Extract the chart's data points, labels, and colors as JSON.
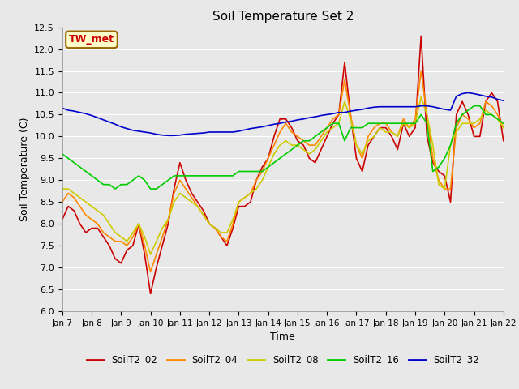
{
  "title": "Soil Temperature Set 2",
  "xlabel": "Time",
  "ylabel": "Soil Temperature (C)",
  "ylim": [
    6.0,
    12.5
  ],
  "yticks": [
    6.0,
    6.5,
    7.0,
    7.5,
    8.0,
    8.5,
    9.0,
    9.5,
    10.0,
    10.5,
    11.0,
    11.5,
    12.0,
    12.5
  ],
  "background_color": "#e8e8e8",
  "plot_bg_color": "#e8e8e8",
  "grid_color": "#ffffff",
  "annotation_text": "TW_met",
  "annotation_bg": "#ffffcc",
  "annotation_border": "#996600",
  "annotation_text_color": "#cc0000",
  "series": {
    "SoilT2_02": {
      "color": "#cc0000",
      "linewidth": 1.2
    },
    "SoilT2_04": {
      "color": "#ff8800",
      "linewidth": 1.2
    },
    "SoilT2_08": {
      "color": "#cccc00",
      "linewidth": 1.2
    },
    "SoilT2_16": {
      "color": "#00cc00",
      "linewidth": 1.2
    },
    "SoilT2_32": {
      "color": "#0000cc",
      "linewidth": 1.2
    }
  },
  "xtick_labels": [
    "Jan 7",
    "Jan 8",
    "Jan 9",
    "Jan 10",
    "Jan 11",
    "Jan 12",
    "Jan 13",
    "Jan 14",
    "Jan 15",
    "Jan 16",
    "Jan 17",
    "Jan 18",
    "Jan 19",
    "Jan 20",
    "Jan 21",
    "Jan 22"
  ],
  "SoilT2_02_x": [
    0,
    0.2,
    0.4,
    0.6,
    0.8,
    1.0,
    1.2,
    1.4,
    1.6,
    1.8,
    2.0,
    2.2,
    2.4,
    2.6,
    2.8,
    3.0,
    3.2,
    3.4,
    3.6,
    3.8,
    4.0,
    4.2,
    4.4,
    4.6,
    4.8,
    5.0,
    5.2,
    5.4,
    5.6,
    5.8,
    6.0,
    6.2,
    6.4,
    6.6,
    6.8,
    7.0,
    7.2,
    7.4,
    7.6,
    7.8,
    8.0,
    8.2,
    8.4,
    8.6,
    8.8,
    9.0,
    9.2,
    9.4,
    9.6,
    9.8,
    10.0,
    10.2,
    10.4,
    10.6,
    10.8,
    11.0,
    11.2,
    11.4,
    11.6,
    11.8,
    12.0,
    12.2,
    12.4,
    12.6,
    12.8,
    13.0,
    13.2,
    13.4,
    13.6,
    13.8,
    14.0,
    14.2,
    14.4,
    14.6,
    14.8,
    15.0
  ],
  "SoilT2_02_y": [
    8.1,
    8.4,
    8.3,
    8.0,
    7.8,
    7.9,
    7.9,
    7.7,
    7.5,
    7.2,
    7.1,
    7.4,
    7.5,
    8.0,
    7.3,
    6.4,
    7.0,
    7.5,
    8.0,
    8.8,
    9.4,
    9.0,
    8.7,
    8.5,
    8.3,
    8.0,
    7.9,
    7.7,
    7.5,
    7.9,
    8.4,
    8.4,
    8.5,
    9.0,
    9.3,
    9.5,
    10.0,
    10.4,
    10.4,
    10.2,
    9.9,
    9.8,
    9.5,
    9.4,
    9.7,
    10.0,
    10.3,
    10.5,
    11.7,
    10.5,
    9.5,
    9.2,
    9.8,
    10.0,
    10.2,
    10.2,
    10.0,
    9.7,
    10.3,
    10.0,
    10.2,
    12.3,
    10.0,
    9.4,
    9.2,
    9.1,
    8.5,
    10.5,
    10.8,
    10.5,
    10.0,
    10.0,
    10.8,
    11.0,
    10.8,
    9.9
  ],
  "SoilT2_04_x": [
    0,
    0.2,
    0.4,
    0.6,
    0.8,
    1.0,
    1.2,
    1.4,
    1.6,
    1.8,
    2.0,
    2.2,
    2.4,
    2.6,
    2.8,
    3.0,
    3.2,
    3.4,
    3.6,
    3.8,
    4.0,
    4.2,
    4.4,
    4.6,
    4.8,
    5.0,
    5.2,
    5.4,
    5.6,
    5.8,
    6.0,
    6.2,
    6.4,
    6.6,
    6.8,
    7.0,
    7.2,
    7.4,
    7.6,
    7.8,
    8.0,
    8.2,
    8.4,
    8.6,
    8.8,
    9.0,
    9.2,
    9.4,
    9.6,
    9.8,
    10.0,
    10.2,
    10.4,
    10.6,
    10.8,
    11.0,
    11.2,
    11.4,
    11.6,
    11.8,
    12.0,
    12.2,
    12.4,
    12.6,
    12.8,
    13.0,
    13.2,
    13.4,
    13.6,
    13.8,
    14.0,
    14.2,
    14.4,
    14.6,
    14.8,
    15.0
  ],
  "SoilT2_04_y": [
    8.5,
    8.7,
    8.6,
    8.4,
    8.2,
    8.1,
    8.0,
    7.8,
    7.7,
    7.6,
    7.6,
    7.5,
    7.7,
    8.0,
    7.5,
    6.9,
    7.3,
    7.7,
    8.1,
    8.7,
    9.0,
    8.8,
    8.6,
    8.4,
    8.2,
    8.0,
    7.9,
    7.7,
    7.6,
    8.0,
    8.5,
    8.6,
    8.7,
    9.0,
    9.2,
    9.5,
    9.8,
    10.1,
    10.3,
    10.1,
    10.0,
    9.9,
    9.8,
    9.8,
    10.0,
    10.2,
    10.4,
    10.5,
    11.3,
    10.5,
    9.8,
    9.5,
    10.0,
    10.2,
    10.3,
    10.3,
    10.1,
    10.0,
    10.4,
    10.2,
    10.4,
    11.5,
    10.5,
    9.5,
    9.0,
    8.8,
    8.8,
    10.2,
    10.5,
    10.4,
    10.2,
    10.3,
    10.8,
    10.7,
    10.5,
    10.2
  ],
  "SoilT2_08_x": [
    0,
    0.2,
    0.4,
    0.6,
    0.8,
    1.0,
    1.2,
    1.4,
    1.6,
    1.8,
    2.0,
    2.2,
    2.4,
    2.6,
    2.8,
    3.0,
    3.2,
    3.4,
    3.6,
    3.8,
    4.0,
    4.2,
    4.4,
    4.6,
    4.8,
    5.0,
    5.2,
    5.4,
    5.6,
    5.8,
    6.0,
    6.2,
    6.4,
    6.6,
    6.8,
    7.0,
    7.2,
    7.4,
    7.6,
    7.8,
    8.0,
    8.2,
    8.4,
    8.6,
    8.8,
    9.0,
    9.2,
    9.4,
    9.6,
    9.8,
    10.0,
    10.2,
    10.4,
    10.6,
    10.8,
    11.0,
    11.2,
    11.4,
    11.6,
    11.8,
    12.0,
    12.2,
    12.4,
    12.6,
    12.8,
    13.0,
    13.2,
    13.4,
    13.6,
    13.8,
    14.0,
    14.2,
    14.4,
    14.6,
    14.8,
    15.0
  ],
  "SoilT2_08_y": [
    8.8,
    8.8,
    8.7,
    8.6,
    8.5,
    8.4,
    8.3,
    8.2,
    8.0,
    7.8,
    7.7,
    7.6,
    7.8,
    8.0,
    7.7,
    7.3,
    7.6,
    7.9,
    8.1,
    8.5,
    8.7,
    8.6,
    8.5,
    8.4,
    8.2,
    8.0,
    7.9,
    7.8,
    7.8,
    8.1,
    8.5,
    8.6,
    8.7,
    8.8,
    9.0,
    9.3,
    9.6,
    9.8,
    9.9,
    9.8,
    9.8,
    9.7,
    9.6,
    9.7,
    9.9,
    10.1,
    10.2,
    10.3,
    10.8,
    10.4,
    9.8,
    9.6,
    9.9,
    10.0,
    10.2,
    10.1,
    10.1,
    10.0,
    10.3,
    10.2,
    10.3,
    10.9,
    10.5,
    9.8,
    8.9,
    8.8,
    9.8,
    10.1,
    10.3,
    10.3,
    10.3,
    10.4,
    10.6,
    10.5,
    10.4,
    10.2
  ],
  "SoilT2_16_x": [
    0,
    0.2,
    0.4,
    0.6,
    0.8,
    1.0,
    1.2,
    1.4,
    1.6,
    1.8,
    2.0,
    2.2,
    2.4,
    2.6,
    2.8,
    3.0,
    3.2,
    3.4,
    3.6,
    3.8,
    4.0,
    4.2,
    4.4,
    4.6,
    4.8,
    5.0,
    5.2,
    5.4,
    5.6,
    5.8,
    6.0,
    6.2,
    6.4,
    6.6,
    6.8,
    7.0,
    7.2,
    7.4,
    7.6,
    7.8,
    8.0,
    8.2,
    8.4,
    8.6,
    8.8,
    9.0,
    9.2,
    9.4,
    9.6,
    9.8,
    10.0,
    10.2,
    10.4,
    10.6,
    10.8,
    11.0,
    11.2,
    11.4,
    11.6,
    11.8,
    12.0,
    12.2,
    12.4,
    12.6,
    12.8,
    13.0,
    13.2,
    13.4,
    13.6,
    13.8,
    14.0,
    14.2,
    14.4,
    14.6,
    14.8,
    15.0
  ],
  "SoilT2_16_y": [
    9.6,
    9.5,
    9.4,
    9.3,
    9.2,
    9.1,
    9.0,
    8.9,
    8.9,
    8.8,
    8.9,
    8.9,
    9.0,
    9.1,
    9.0,
    8.8,
    8.8,
    8.9,
    9.0,
    9.1,
    9.1,
    9.1,
    9.1,
    9.1,
    9.1,
    9.1,
    9.1,
    9.1,
    9.1,
    9.1,
    9.2,
    9.2,
    9.2,
    9.2,
    9.2,
    9.3,
    9.4,
    9.5,
    9.6,
    9.7,
    9.8,
    9.9,
    9.9,
    10.0,
    10.1,
    10.2,
    10.3,
    10.3,
    9.9,
    10.2,
    10.2,
    10.2,
    10.3,
    10.3,
    10.3,
    10.3,
    10.3,
    10.3,
    10.3,
    10.3,
    10.3,
    10.5,
    10.3,
    9.2,
    9.3,
    9.5,
    9.8,
    10.3,
    10.5,
    10.6,
    10.7,
    10.7,
    10.5,
    10.5,
    10.4,
    10.3
  ],
  "SoilT2_32_x": [
    0,
    0.2,
    0.4,
    0.6,
    0.8,
    1.0,
    1.2,
    1.4,
    1.6,
    1.8,
    2.0,
    2.2,
    2.4,
    2.6,
    2.8,
    3.0,
    3.2,
    3.4,
    3.6,
    3.8,
    4.0,
    4.2,
    4.4,
    4.6,
    4.8,
    5.0,
    5.2,
    5.4,
    5.6,
    5.8,
    6.0,
    6.2,
    6.4,
    6.6,
    6.8,
    7.0,
    7.2,
    7.4,
    7.6,
    7.8,
    8.0,
    8.2,
    8.4,
    8.6,
    8.8,
    9.0,
    9.2,
    9.4,
    9.6,
    9.8,
    10.0,
    10.2,
    10.4,
    10.6,
    10.8,
    11.0,
    11.2,
    11.4,
    11.6,
    11.8,
    12.0,
    12.2,
    12.4,
    12.6,
    12.8,
    13.0,
    13.2,
    13.4,
    13.6,
    13.8,
    14.0,
    14.2,
    14.4,
    14.6,
    14.8,
    15.0
  ],
  "SoilT2_32_y": [
    10.65,
    10.6,
    10.58,
    10.55,
    10.52,
    10.48,
    10.43,
    10.38,
    10.33,
    10.28,
    10.22,
    10.18,
    10.14,
    10.12,
    10.1,
    10.08,
    10.05,
    10.03,
    10.02,
    10.02,
    10.03,
    10.05,
    10.06,
    10.07,
    10.08,
    10.1,
    10.1,
    10.1,
    10.1,
    10.1,
    10.12,
    10.15,
    10.18,
    10.2,
    10.22,
    10.25,
    10.28,
    10.3,
    10.33,
    10.35,
    10.38,
    10.4,
    10.43,
    10.45,
    10.48,
    10.5,
    10.52,
    10.55,
    10.55,
    10.58,
    10.6,
    10.62,
    10.65,
    10.67,
    10.68,
    10.68,
    10.68,
    10.68,
    10.68,
    10.68,
    10.68,
    10.7,
    10.7,
    10.68,
    10.65,
    10.62,
    10.6,
    10.92,
    10.98,
    11.0,
    10.98,
    10.95,
    10.92,
    10.9,
    10.85,
    10.82
  ]
}
